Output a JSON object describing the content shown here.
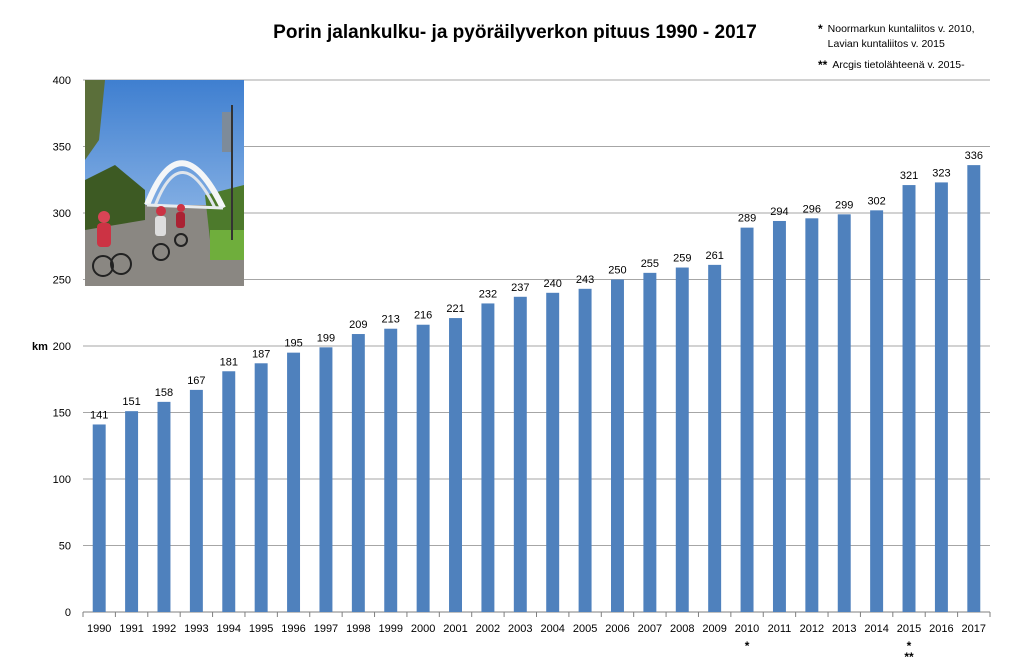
{
  "chart_data": {
    "type": "bar",
    "title": "Porin jalankulku- ja pyöräilyverkon pituus 1990 - 2017",
    "xlabel": "",
    "ylabel": "km",
    "ylim": [
      0,
      400
    ],
    "yticks": [
      0,
      50,
      100,
      150,
      200,
      250,
      300,
      350,
      400
    ],
    "grid": true,
    "bar_color": "#4f81bd",
    "categories": [
      "1990",
      "1991",
      "1992",
      "1993",
      "1994",
      "1995",
      "1996",
      "1997",
      "1998",
      "1999",
      "2000",
      "2001",
      "2002",
      "2003",
      "2004",
      "2005",
      "2006",
      "2007",
      "2008",
      "2009",
      "2010",
      "2011",
      "2012",
      "2013",
      "2014",
      "2015",
      "2016",
      "2017"
    ],
    "values": [
      141,
      151,
      158,
      167,
      181,
      187,
      195,
      199,
      209,
      213,
      216,
      221,
      232,
      237,
      240,
      243,
      250,
      255,
      259,
      261,
      289,
      294,
      296,
      299,
      302,
      321,
      323,
      336
    ],
    "category_markers": [
      {
        "category": "2010",
        "marker": "*"
      },
      {
        "category": "2015",
        "marker": "*"
      },
      {
        "category": "2015",
        "marker": "**"
      }
    ]
  },
  "notes": [
    {
      "marker": "*",
      "lines": [
        "Noormarkun kuntaliitos v. 2010,",
        "Lavian kuntaliitos v. 2015"
      ]
    },
    {
      "marker": "**",
      "lines": [
        "Arcgis tietolähteenä v. 2015-"
      ]
    }
  ]
}
